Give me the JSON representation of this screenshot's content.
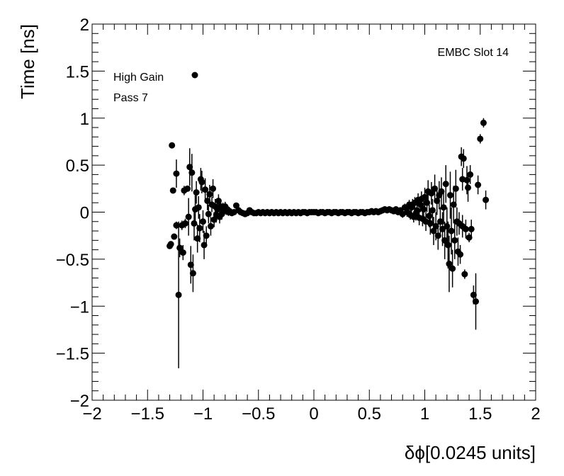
{
  "chart_data": {
    "type": "scatter",
    "xlabel": "δϕ[0.0245 units]",
    "ylabel": "Time [ns]",
    "xlim": [
      -2,
      2
    ],
    "ylim": [
      -2,
      2
    ],
    "xticks": [
      "−2",
      "−1.5",
      "−1",
      "−0.5",
      "0",
      "0.5",
      "1",
      "1.5",
      "2"
    ],
    "yticks": [
      "−2",
      "−1.5",
      "−1",
      "−0.5",
      "0",
      "0.5",
      "1",
      "1.5",
      "2"
    ],
    "annotation": "EMBC Slot 14",
    "legend": {
      "entries": [
        "High Gain",
        "Pass 7"
      ],
      "placement": "top-left"
    },
    "grid": false,
    "series": [
      {
        "marker": "filled-circle",
        "color": "#000000",
        "points": [
          [
            -1.3,
            -0.36,
            0.02
          ],
          [
            -1.29,
            -0.34,
            0.02
          ],
          [
            -1.28,
            0.71,
            0.02
          ],
          [
            -1.27,
            0.23,
            0.02
          ],
          [
            -1.26,
            -0.26,
            0.03
          ],
          [
            -1.24,
            0.41,
            0.15
          ],
          [
            -1.24,
            -0.14,
            0.04
          ],
          [
            -1.22,
            -0.88,
            0.78
          ],
          [
            -1.21,
            -0.38,
            0.1
          ],
          [
            -1.19,
            -0.14,
            0.05
          ],
          [
            -1.18,
            -0.43,
            0.08
          ],
          [
            -1.17,
            0.23,
            0.05
          ],
          [
            -1.16,
            -0.12,
            0.05
          ],
          [
            -1.14,
            0.25,
            0.03
          ],
          [
            -1.13,
            -0.05,
            0.2
          ],
          [
            -1.12,
            0.48,
            0.2
          ],
          [
            -1.11,
            -0.56,
            0.2
          ],
          [
            -1.1,
            0.42,
            0.2
          ],
          [
            -1.09,
            -0.65,
            0.2
          ],
          [
            -1.08,
            -0.12,
            0.18
          ],
          [
            -1.07,
            0.03,
            0.15
          ],
          [
            -1.06,
            0.21,
            0.12
          ],
          [
            -1.05,
            -0.28,
            0.15
          ],
          [
            -1.04,
            0.05,
            0.12
          ],
          [
            -1.03,
            -0.17,
            0.15
          ],
          [
            -1.02,
            0.35,
            0.12
          ],
          [
            -1.01,
            0.32,
            0.12
          ],
          [
            -1.0,
            -0.1,
            0.12
          ],
          [
            -0.99,
            -0.35,
            0.15
          ],
          [
            -0.98,
            0.24,
            0.12
          ],
          [
            -0.97,
            -0.25,
            0.1
          ],
          [
            -0.96,
            0.12,
            0.1
          ],
          [
            -0.95,
            -0.02,
            0.1
          ],
          [
            -0.94,
            0.19,
            0.1
          ],
          [
            -0.93,
            -0.15,
            0.1
          ],
          [
            -0.92,
            0.08,
            0.08
          ],
          [
            -0.91,
            0.25,
            0.1
          ],
          [
            -0.9,
            -0.08,
            0.08
          ],
          [
            -0.89,
            0.06,
            0.08
          ],
          [
            -0.88,
            -0.03,
            0.08
          ],
          [
            -0.87,
            0.03,
            0.07
          ],
          [
            -0.86,
            0.12,
            0.07
          ],
          [
            -0.85,
            -0.05,
            0.07
          ],
          [
            -0.84,
            0.06,
            0.06
          ],
          [
            -0.83,
            -0.02,
            0.06
          ],
          [
            -0.82,
            0.04,
            0.06
          ],
          [
            -0.81,
            0.01,
            0.05
          ],
          [
            -0.8,
            0.06,
            0.05
          ],
          [
            -0.79,
            0.02,
            0.05
          ],
          [
            -0.78,
            0.03,
            0.04
          ],
          [
            -0.77,
            0.0,
            0.04
          ],
          [
            -0.76,
            0.01,
            0.03
          ],
          [
            -0.74,
            -0.01,
            0.03
          ],
          [
            -0.72,
            0.0,
            0.02
          ],
          [
            -0.7,
            0.07,
            0.02
          ],
          [
            -0.68,
            0.02,
            0.02
          ],
          [
            -0.66,
            0.0,
            0.01
          ],
          [
            -0.64,
            -0.01,
            0.01
          ],
          [
            -0.62,
            -0.02,
            0.01
          ],
          [
            -0.6,
            -0.01,
            0.01
          ],
          [
            -0.58,
            0.02,
            0.01
          ],
          [
            -0.56,
            0.0,
            0.01
          ],
          [
            -0.54,
            -0.01,
            0.01
          ],
          [
            -0.52,
            -0.01,
            0.01
          ],
          [
            -0.5,
            0.0,
            0.01
          ],
          [
            -0.48,
            -0.01,
            0.01
          ],
          [
            -0.46,
            0.0,
            0.01
          ],
          [
            -0.44,
            -0.01,
            0.01
          ],
          [
            -0.42,
            0.0,
            0.01
          ],
          [
            -0.4,
            -0.01,
            0.01
          ],
          [
            -0.38,
            0.0,
            0.01
          ],
          [
            -0.36,
            -0.01,
            0.01
          ],
          [
            -0.34,
            0.0,
            0.01
          ],
          [
            -0.32,
            -0.01,
            0.01
          ],
          [
            -0.3,
            0.0,
            0.01
          ],
          [
            -0.28,
            -0.01,
            0.01
          ],
          [
            -0.26,
            0.0,
            0.01
          ],
          [
            -0.24,
            -0.01,
            0.01
          ],
          [
            -0.22,
            0.0,
            0.01
          ],
          [
            -0.2,
            -0.01,
            0.01
          ],
          [
            -0.18,
            0.0,
            0.01
          ],
          [
            -0.16,
            -0.01,
            0.01
          ],
          [
            -0.14,
            0.0,
            0.01
          ],
          [
            -0.12,
            -0.01,
            0.01
          ],
          [
            -0.1,
            0.0,
            0.01
          ],
          [
            -0.08,
            0.0,
            0.01
          ],
          [
            -0.06,
            -0.01,
            0.01
          ],
          [
            -0.04,
            0.0,
            0.01
          ],
          [
            -0.02,
            0.0,
            0.01
          ],
          [
            0.0,
            0.0,
            0.01
          ],
          [
            0.02,
            0.0,
            0.01
          ],
          [
            0.04,
            -0.01,
            0.01
          ],
          [
            0.06,
            0.0,
            0.01
          ],
          [
            0.08,
            0.0,
            0.01
          ],
          [
            0.1,
            -0.01,
            0.01
          ],
          [
            0.12,
            0.0,
            0.01
          ],
          [
            0.14,
            0.0,
            0.01
          ],
          [
            0.16,
            -0.01,
            0.01
          ],
          [
            0.18,
            0.0,
            0.01
          ],
          [
            0.2,
            0.0,
            0.01
          ],
          [
            0.22,
            -0.01,
            0.01
          ],
          [
            0.24,
            0.0,
            0.01
          ],
          [
            0.26,
            0.0,
            0.01
          ],
          [
            0.28,
            -0.01,
            0.01
          ],
          [
            0.3,
            0.0,
            0.01
          ],
          [
            0.32,
            0.0,
            0.01
          ],
          [
            0.34,
            -0.01,
            0.01
          ],
          [
            0.36,
            0.0,
            0.01
          ],
          [
            0.38,
            0.0,
            0.01
          ],
          [
            0.4,
            -0.01,
            0.01
          ],
          [
            0.42,
            0.0,
            0.01
          ],
          [
            0.44,
            0.0,
            0.01
          ],
          [
            0.46,
            -0.01,
            0.01
          ],
          [
            0.48,
            0.0,
            0.01
          ],
          [
            0.5,
            0.0,
            0.01
          ],
          [
            0.52,
            0.01,
            0.01
          ],
          [
            0.54,
            0.0,
            0.01
          ],
          [
            0.56,
            0.01,
            0.01
          ],
          [
            0.58,
            0.0,
            0.01
          ],
          [
            0.6,
            0.01,
            0.01
          ],
          [
            0.62,
            0.02,
            0.01
          ],
          [
            0.64,
            0.03,
            0.01
          ],
          [
            0.66,
            0.02,
            0.02
          ],
          [
            0.68,
            0.03,
            0.02
          ],
          [
            0.7,
            0.02,
            0.02
          ],
          [
            0.72,
            0.01,
            0.02
          ],
          [
            0.74,
            0.03,
            0.02
          ],
          [
            0.76,
            0.0,
            0.03
          ],
          [
            0.78,
            0.02,
            0.03
          ],
          [
            0.8,
            -0.02,
            0.04
          ],
          [
            0.82,
            0.05,
            0.04
          ],
          [
            0.84,
            0.0,
            0.05
          ],
          [
            0.85,
            0.06,
            0.05
          ],
          [
            0.86,
            0.08,
            0.05
          ],
          [
            0.87,
            -0.03,
            0.05
          ],
          [
            0.88,
            0.05,
            0.06
          ],
          [
            0.89,
            0.08,
            0.06
          ],
          [
            0.9,
            -0.05,
            0.06
          ],
          [
            0.91,
            0.1,
            0.06
          ],
          [
            0.92,
            -0.02,
            0.07
          ],
          [
            0.93,
            0.02,
            0.07
          ],
          [
            0.94,
            0.13,
            0.07
          ],
          [
            0.95,
            -0.06,
            0.08
          ],
          [
            0.96,
            0.08,
            0.08
          ],
          [
            0.97,
            0.14,
            0.08
          ],
          [
            0.98,
            -0.07,
            0.08
          ],
          [
            0.99,
            0.03,
            0.09
          ],
          [
            1.0,
            0.16,
            0.1
          ],
          [
            1.01,
            -0.1,
            0.1
          ],
          [
            1.02,
            0.1,
            0.1
          ],
          [
            1.03,
            0.22,
            0.12
          ],
          [
            1.04,
            -0.04,
            0.12
          ],
          [
            1.05,
            -0.12,
            0.12
          ],
          [
            1.06,
            0.2,
            0.12
          ],
          [
            1.07,
            0.02,
            0.12
          ],
          [
            1.08,
            -0.2,
            0.15
          ],
          [
            1.09,
            0.25,
            0.15
          ],
          [
            1.1,
            -0.15,
            0.15
          ],
          [
            1.11,
            0.12,
            0.15
          ],
          [
            1.12,
            -0.25,
            0.15
          ],
          [
            1.13,
            0.18,
            0.15
          ],
          [
            1.14,
            -0.1,
            0.15
          ],
          [
            1.15,
            0.22,
            0.15
          ],
          [
            1.16,
            -0.18,
            0.18
          ],
          [
            1.17,
            0.05,
            0.18
          ],
          [
            1.18,
            -0.3,
            0.2
          ],
          [
            1.19,
            0.3,
            0.2
          ],
          [
            1.2,
            -0.15,
            0.2
          ],
          [
            1.21,
            -0.35,
            0.25
          ],
          [
            1.22,
            -0.55,
            0.3
          ],
          [
            1.23,
            0.18,
            0.25
          ],
          [
            1.24,
            -0.2,
            0.25
          ],
          [
            1.25,
            -0.6,
            0.2
          ],
          [
            1.26,
            0.08,
            0.2
          ],
          [
            1.27,
            -0.3,
            0.2
          ],
          [
            1.28,
            0.25,
            0.2
          ],
          [
            1.29,
            -0.1,
            0.15
          ],
          [
            1.3,
            -0.42,
            0.15
          ],
          [
            1.31,
            -0.12,
            0.12
          ],
          [
            1.32,
            -0.45,
            0.1
          ],
          [
            1.33,
            0.59,
            0.1
          ],
          [
            1.34,
            0.35,
            0.12
          ],
          [
            1.34,
            -0.15,
            0.12
          ],
          [
            1.35,
            0.57,
            0.1
          ],
          [
            1.36,
            -0.66,
            0.05
          ],
          [
            1.37,
            -0.18,
            0.1
          ],
          [
            1.38,
            0.34,
            0.15
          ],
          [
            1.39,
            0.26,
            0.15
          ],
          [
            1.4,
            -0.27,
            0.05
          ],
          [
            1.41,
            0.4,
            0.1
          ],
          [
            1.42,
            -0.18,
            0.1
          ],
          [
            1.44,
            -0.88,
            0.1
          ],
          [
            1.46,
            -0.95,
            0.3
          ],
          [
            1.48,
            0.29,
            0.1
          ],
          [
            1.5,
            0.78,
            0.05
          ],
          [
            1.53,
            0.95,
            0.05
          ],
          [
            1.55,
            0.13,
            0.1
          ]
        ]
      }
    ]
  }
}
